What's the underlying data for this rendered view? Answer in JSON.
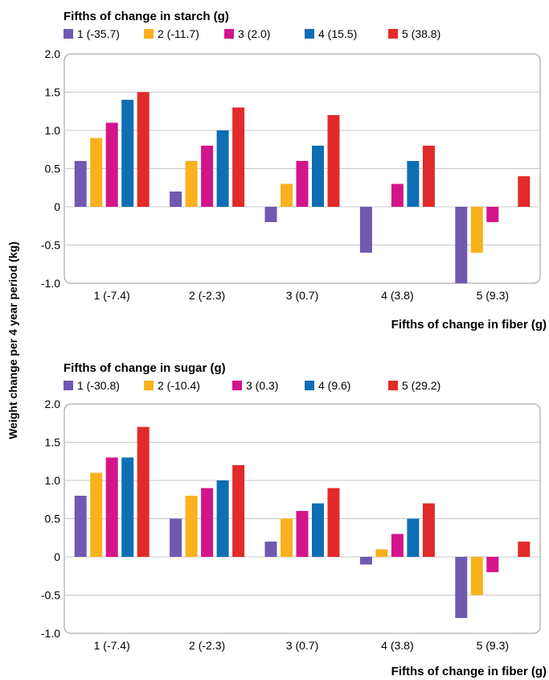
{
  "ylabel": "Weight change per 4 year period (kg)",
  "chart_data": [
    {
      "type": "bar",
      "legend_title": "Fifths of change in starch (g)",
      "xlabel": "Fifths of change in fiber (g)",
      "ylabel": "Weight change per 4 year period (kg)",
      "categories": [
        "1 (-7.4)",
        "2 (-2.3)",
        "3 (0.7)",
        "4 (3.8)",
        "5 (9.3)"
      ],
      "ylim": [
        -1.0,
        2.0
      ],
      "yticks": [
        -1.0,
        -0.5,
        0,
        0.5,
        1.0,
        1.5,
        2.0
      ],
      "ytick_labels": [
        "-1.0",
        "-0.5",
        "0",
        "0.5",
        "1.0",
        "1.5",
        "2.0"
      ],
      "grid": true,
      "legend_position": "top",
      "series": [
        {
          "name": "1 (-35.7)",
          "color": "#7059b0",
          "values": [
            0.6,
            0.2,
            -0.2,
            -0.6,
            -1.0
          ]
        },
        {
          "name": "2 (-11.7)",
          "color": "#f9b21d",
          "values": [
            0.9,
            0.6,
            0.3,
            0.0,
            -0.6
          ]
        },
        {
          "name": "3 (2.0)",
          "color": "#d4148b",
          "values": [
            1.1,
            0.8,
            0.6,
            0.3,
            -0.2
          ]
        },
        {
          "name": "4 (15.5)",
          "color": "#0e6eb4",
          "values": [
            1.4,
            1.0,
            0.8,
            0.6,
            0.0
          ]
        },
        {
          "name": "5 (38.8)",
          "color": "#e32a2a",
          "values": [
            1.5,
            1.3,
            1.2,
            0.8,
            0.4
          ]
        }
      ]
    },
    {
      "type": "bar",
      "legend_title": "Fifths of change in sugar (g)",
      "xlabel": "Fifths of change in fiber (g)",
      "ylabel": "Weight change per 4 year period (kg)",
      "categories": [
        "1 (-7.4)",
        "2 (-2.3)",
        "3 (0.7)",
        "4 (3.8)",
        "5 (9.3)"
      ],
      "ylim": [
        -1.0,
        2.0
      ],
      "yticks": [
        -1.0,
        -0.5,
        0,
        0.5,
        1.0,
        1.5,
        2.0
      ],
      "ytick_labels": [
        "-1.0",
        "-0.5",
        "0",
        "0.5",
        "1.0",
        "1.5",
        "2.0"
      ],
      "grid": true,
      "legend_position": "top",
      "series": [
        {
          "name": "1 (-30.8)",
          "color": "#7059b0",
          "values": [
            0.8,
            0.5,
            0.2,
            -0.1,
            -0.8
          ]
        },
        {
          "name": "2 (-10.4)",
          "color": "#f9b21d",
          "values": [
            1.1,
            0.8,
            0.5,
            0.1,
            -0.5
          ]
        },
        {
          "name": "3 (0.3)",
          "color": "#d4148b",
          "values": [
            1.3,
            0.9,
            0.6,
            0.3,
            -0.2
          ]
        },
        {
          "name": "4 (9.6)",
          "color": "#0e6eb4",
          "values": [
            1.3,
            1.0,
            0.7,
            0.5,
            0.0
          ]
        },
        {
          "name": "5 (29.2)",
          "color": "#e32a2a",
          "values": [
            1.7,
            1.2,
            0.9,
            0.7,
            0.2
          ]
        }
      ]
    }
  ]
}
